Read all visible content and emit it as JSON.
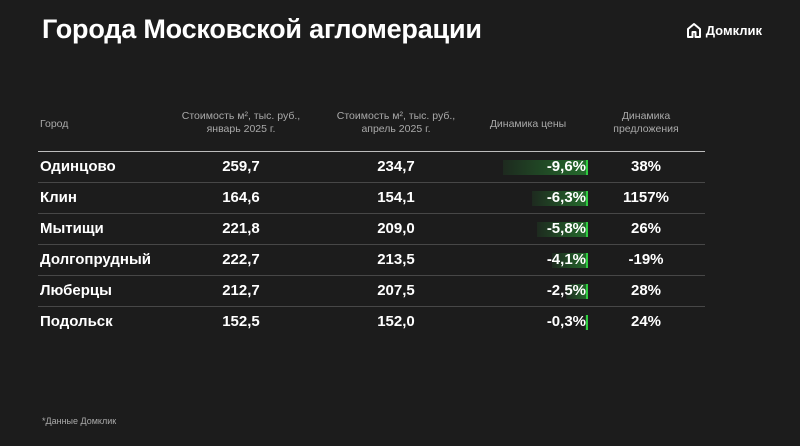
{
  "title": "Города Московской агломерации",
  "brand": {
    "name": "Домклик",
    "icon": "house-logo-icon"
  },
  "colors": {
    "background": "#1c1c1c",
    "accent": "#2ecc40",
    "header_text": "#a9a9a9"
  },
  "chart_data": {
    "type": "table",
    "title": "Города Московской агломерации",
    "columns": [
      "Город",
      "Стоимость м², тыс. руб., январь 2025 г.",
      "Стоимость м², тыс. руб., апрель 2025 г.",
      "Динамика цены",
      "Динамика предложения"
    ],
    "header_lines": {
      "city": "Город",
      "jan_1": "Стоимость м², тыс. руб.,",
      "jan_2": "январь 2025 г.",
      "apr_1": "Стоимость м², тыс. руб.,",
      "apr_2": "апрель 2025 г.",
      "dyn": "Динамика цены",
      "sup_1": "Динамика",
      "sup_2": "предложения"
    },
    "rows": [
      {
        "city": "Одинцово",
        "jan": "259,7",
        "apr": "234,7",
        "price_change": "-9,6%",
        "price_change_value": -9.6,
        "supply_change": "38%"
      },
      {
        "city": "Клин",
        "jan": "164,6",
        "apr": "154,1",
        "price_change": "-6,3%",
        "price_change_value": -6.3,
        "supply_change": "1157%"
      },
      {
        "city": "Мытищи",
        "jan": "221,8",
        "apr": "209,0",
        "price_change": "-5,8%",
        "price_change_value": -5.8,
        "supply_change": "26%"
      },
      {
        "city": "Долгопрудный",
        "jan": "222,7",
        "apr": "213,5",
        "price_change": "-4,1%",
        "price_change_value": -4.1,
        "supply_change": "-19%"
      },
      {
        "city": "Люберцы",
        "jan": "212,7",
        "apr": "207,5",
        "price_change": "-2,5%",
        "price_change_value": -2.5,
        "supply_change": "28%"
      },
      {
        "city": "Подольск",
        "jan": "152,5",
        "apr": "152,0",
        "price_change": "-0,3%",
        "price_change_value": -0.3,
        "supply_change": "24%"
      }
    ]
  },
  "footnote": "*Данные Домклик"
}
